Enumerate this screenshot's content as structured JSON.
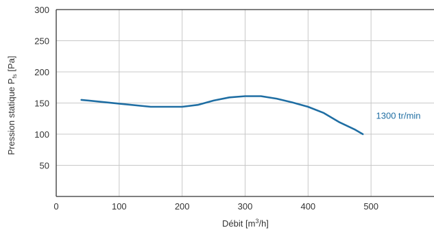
{
  "chart_data": {
    "type": "line",
    "xlabel": {
      "main": "Débit [m",
      "sup": "3",
      "tail": "/h]"
    },
    "ylabel": {
      "main": "Pression statique P",
      "sub": "fs",
      "tail": " [Pa]"
    },
    "xlim": [
      0,
      600
    ],
    "ylim": [
      0,
      300
    ],
    "xticks": [
      0,
      100,
      200,
      300,
      400,
      500
    ],
    "yticks": [
      50,
      100,
      150,
      200,
      250,
      300
    ],
    "grid": true,
    "colors": {
      "line": "#1f6ea3",
      "grid": "#c8c8c8",
      "axis": "#333333"
    },
    "series": [
      {
        "x": [
          40,
          100,
          150,
          200,
          225,
          250,
          275,
          300,
          325,
          350,
          375,
          400,
          425,
          450,
          475,
          487
        ],
        "y": [
          155,
          149,
          144,
          144,
          147,
          154,
          159,
          161,
          161,
          157,
          151,
          144,
          134,
          119,
          107,
          100
        ]
      }
    ],
    "annotations": [
      {
        "text": "1300 tr/min",
        "x": 508,
        "y": 130
      }
    ]
  }
}
